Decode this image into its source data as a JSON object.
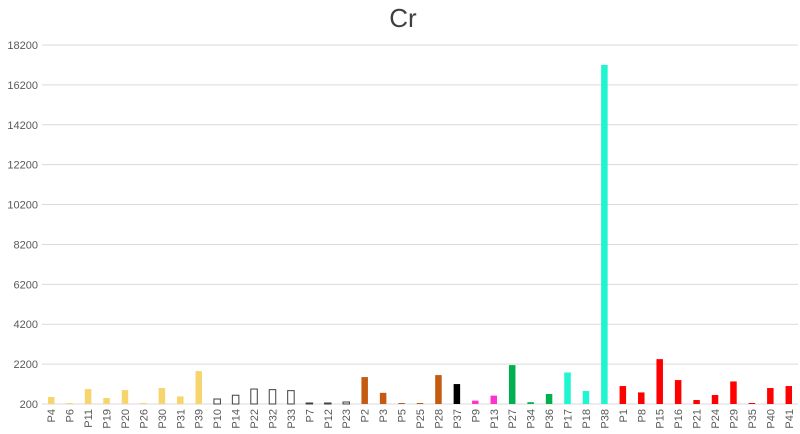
{
  "chart_data": {
    "type": "bar",
    "title": "Cr",
    "xlabel": "",
    "ylabel": "",
    "ylim": [
      200,
      18200
    ],
    "yticks": [
      200,
      2200,
      4200,
      6200,
      8200,
      10200,
      12200,
      14200,
      16200,
      18200
    ],
    "grid": true,
    "legend": "none",
    "categories": [
      "P4",
      "P6",
      "P11",
      "P19",
      "P20",
      "P26",
      "P30",
      "P31",
      "P39",
      "P10",
      "P14",
      "P22",
      "P32",
      "P33",
      "P7",
      "P12",
      "P23",
      "P2",
      "P3",
      "P5",
      "P25",
      "P28",
      "P37",
      "P9",
      "P13",
      "P27",
      "P34",
      "P36",
      "P17",
      "P18",
      "P38",
      "P1",
      "P8",
      "P15",
      "P16",
      "P21",
      "P24",
      "P29",
      "P35",
      "P40",
      "P41"
    ],
    "values": [
      550,
      210,
      950,
      500,
      900,
      230,
      1000,
      580,
      1850,
      450,
      640,
      950,
      920,
      870,
      220,
      220,
      300,
      1550,
      760,
      230,
      230,
      1650,
      1200,
      370,
      620,
      2150,
      290,
      700,
      1780,
      850,
      17200,
      1100,
      780,
      2450,
      1400,
      400,
      650,
      1330,
      240,
      1000,
      1100
    ],
    "colors": [
      "#f7d56e",
      "#f7d56e",
      "#f7d56e",
      "#f7d56e",
      "#f7d56e",
      "#f7d56e",
      "#f7d56e",
      "#f7d56e",
      "#f7d56e",
      "#ffffff",
      "#ffffff",
      "#ffffff",
      "#ffffff",
      "#ffffff",
      "#ffffff",
      "#ffffff",
      "#ffffff",
      "#c55a11",
      "#c55a11",
      "#c55a11",
      "#c55a11",
      "#c55a11",
      "#000000",
      "#ff33cc",
      "#ff33cc",
      "#00b050",
      "#00b050",
      "#00b050",
      "#1ff5d0",
      "#1ff5d0",
      "#1ff5d0",
      "#ff0000",
      "#ff0000",
      "#ff0000",
      "#ff0000",
      "#ff0000",
      "#ff0000",
      "#ff0000",
      "#ff0000",
      "#ff0000",
      "#ff0000"
    ],
    "outlined": [
      false,
      false,
      false,
      false,
      false,
      false,
      false,
      false,
      false,
      true,
      true,
      true,
      true,
      true,
      true,
      true,
      true,
      false,
      false,
      false,
      false,
      false,
      false,
      false,
      false,
      false,
      false,
      false,
      false,
      false,
      false,
      false,
      false,
      false,
      false,
      false,
      false,
      false,
      false,
      false,
      false
    ]
  }
}
